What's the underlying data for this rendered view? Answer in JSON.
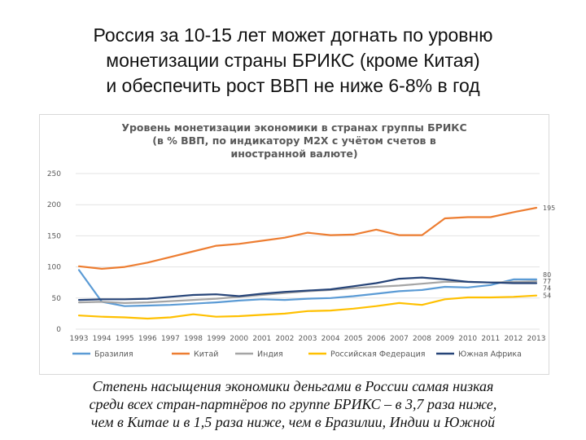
{
  "slide": {
    "title_lines": [
      "Россия за 10-15 лет может догнать по уровню",
      "монетизации страны БРИКС (кроме Китая)",
      "и обеспечить рост ВВП не ниже 6-8% в год"
    ],
    "caption_lines": [
      "Степень насыщения экономики деньгами в России самая низкая",
      "среди всех стран-партнёров по группе БРИКС – в 3,7 раза ниже,",
      "чем в Китае и в 1,5 раза ниже, чем в Бразилии, Индии и Южной"
    ]
  },
  "colors": {
    "Бразилия": "#5b9bd5",
    "Китай": "#ed7d31",
    "Индия": "#a5a5a5",
    "Российская Федерация": "#ffc000",
    "Южная Африка": "#264478",
    "axis_text": "#595959",
    "grid": "#e3e3e3"
  },
  "chart_data": {
    "type": "line",
    "title_lines": [
      "Уровень монетизации экономики в странах группы БРИКС",
      "(в % ВВП, по индикатору M2X с учётом счетов в",
      "иностранной валюте)"
    ],
    "xlabel": "",
    "ylabel": "",
    "ylim": [
      0,
      250
    ],
    "yticks": [
      "0",
      "50",
      "100",
      "150",
      "200",
      "250"
    ],
    "categories": [
      "1993",
      "1994",
      "1995",
      "1996",
      "1997",
      "1998",
      "1999",
      "2000",
      "2001",
      "2002",
      "2003",
      "2004",
      "2005",
      "2006",
      "2007",
      "2008",
      "2009",
      "2010",
      "2011",
      "2012",
      "2013"
    ],
    "grid": true,
    "legend_position": "bottom",
    "series": [
      {
        "name": "Бразилия",
        "values": [
          95,
          44,
          37,
          38,
          39,
          41,
          43,
          46,
          48,
          47,
          49,
          50,
          53,
          57,
          61,
          63,
          68,
          67,
          71,
          80,
          80
        ],
        "end_label": "80"
      },
      {
        "name": "Китай",
        "values": [
          101,
          97,
          100,
          107,
          116,
          125,
          134,
          137,
          142,
          147,
          155,
          151,
          152,
          160,
          151,
          151,
          178,
          180,
          180,
          188,
          195
        ],
        "end_label": "195"
      },
      {
        "name": "Индия",
        "values": [
          43,
          44,
          42,
          43,
          45,
          47,
          49,
          52,
          55,
          58,
          61,
          63,
          66,
          68,
          70,
          73,
          76,
          76,
          75,
          76,
          77
        ],
        "end_label": "77"
      },
      {
        "name": "Российская Федерация",
        "values": [
          22,
          20,
          19,
          17,
          19,
          24,
          20,
          21,
          23,
          25,
          29,
          30,
          33,
          37,
          42,
          39,
          48,
          51,
          51,
          52,
          54
        ],
        "end_label": "54"
      },
      {
        "name": "Южная Африка",
        "values": [
          47,
          48,
          48,
          49,
          52,
          55,
          56,
          53,
          57,
          60,
          62,
          64,
          69,
          74,
          81,
          83,
          80,
          76,
          75,
          74,
          74
        ],
        "end_label": "74"
      }
    ]
  }
}
